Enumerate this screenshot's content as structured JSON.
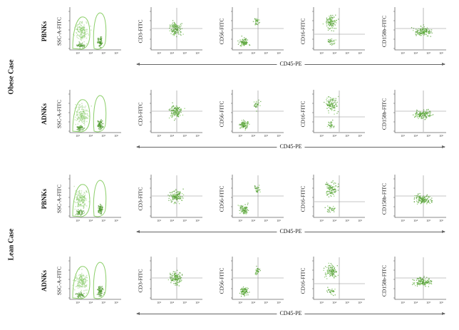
{
  "groups": [
    {
      "case_label": "Obese Case",
      "rows": [
        0,
        1
      ]
    },
    {
      "case_label": "Lean Case",
      "rows": [
        2,
        3
      ]
    }
  ],
  "rows": [
    {
      "label": "PBNKs",
      "x_axis_label": "CD45-PE"
    },
    {
      "label": "ADNKs",
      "x_axis_label": "CD45-PE"
    },
    {
      "label": "PBNKs",
      "x_axis_label": "CD45-PE"
    },
    {
      "label": "ADNKs",
      "x_axis_label": "CD45-PE"
    }
  ],
  "columns": [
    {
      "y_label": "SSC-A-FITC",
      "kind": "gate"
    },
    {
      "y_label": "CD3-FITC",
      "kind": "scatter"
    },
    {
      "y_label": "CD56-FITC",
      "kind": "scatter"
    },
    {
      "y_label": "CD16-FITC",
      "kind": "scatter"
    },
    {
      "y_label": "CD158b-FITC",
      "kind": "scatter"
    }
  ],
  "x_tick_labels": [
    "10³",
    "10⁴",
    "10⁵",
    "10⁶"
  ],
  "colors": {
    "point": "#4f9a2f",
    "point_light": "#7cc65a",
    "gate_outline": "#8ccf6a",
    "quadrant": "#8a8a8a",
    "axis": "#666666"
  }
}
